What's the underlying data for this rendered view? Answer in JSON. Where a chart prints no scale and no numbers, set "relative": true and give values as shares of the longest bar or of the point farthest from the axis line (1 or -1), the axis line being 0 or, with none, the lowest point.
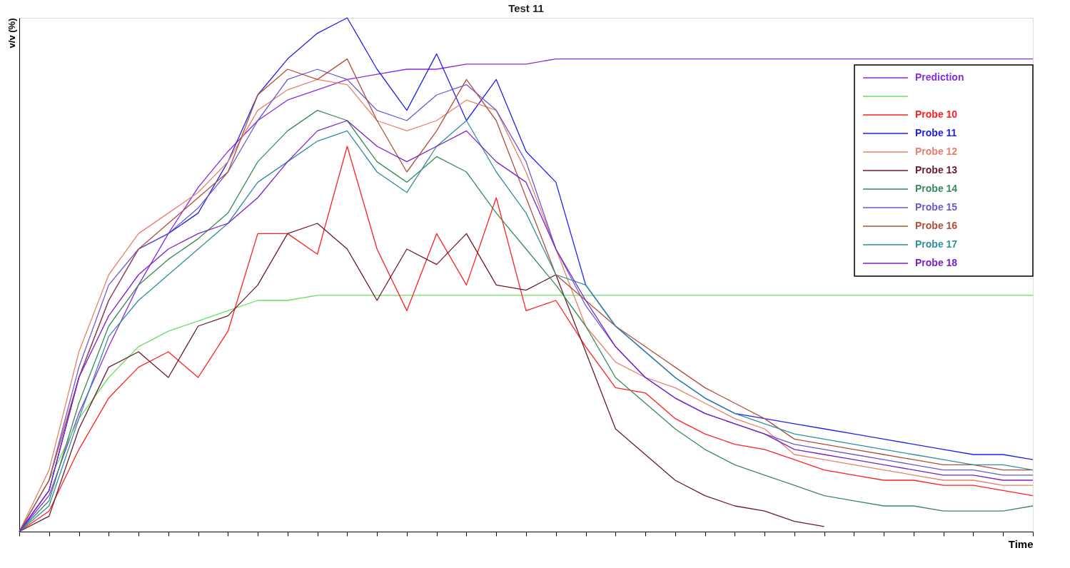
{
  "chart_data": {
    "type": "line",
    "title": "Test 11",
    "xlabel": "Time",
    "ylabel": "v/v (%)",
    "relative": true,
    "legend": "top right",
    "categories": [
      null,
      null,
      null,
      null,
      null,
      null,
      null,
      null,
      null,
      null,
      null,
      null,
      null,
      null,
      null,
      null,
      null,
      null,
      null,
      null,
      null,
      null,
      null,
      null,
      null,
      null,
      null,
      null,
      null,
      null,
      null,
      null,
      null,
      null,
      null
    ],
    "series": [
      {
        "name": "Prediction",
        "color": "#8a2be2",
        "values": [
          0,
          0.07,
          0.23,
          0.36,
          0.48,
          0.58,
          0.67,
          0.74,
          0.8,
          0.84,
          0.86,
          0.88,
          0.89,
          0.9,
          0.9,
          0.91,
          0.91,
          0.91,
          0.92,
          0.92,
          0.92,
          0.92,
          0.92,
          0.92,
          0.92,
          0.92,
          0.92,
          0.92,
          0.92,
          0.92,
          0.92,
          0.92,
          0.92,
          0.92,
          0.92
        ]
      },
      {
        "color": "#66e066",
        "values": [
          0,
          0.1,
          0.22,
          0.3,
          0.36,
          0.39,
          0.41,
          0.43,
          0.45,
          0.45,
          0.46,
          0.46,
          0.46,
          0.46,
          0.46,
          0.46,
          0.46,
          0.46,
          0.46,
          0.46,
          0.46,
          0.46,
          0.46,
          0.46,
          0.46,
          0.46,
          0.46,
          0.46,
          0.46,
          0.46,
          0.46,
          0.46,
          0.46,
          0.46,
          0.46
        ]
      },
      {
        "name": "Probe 10",
        "color": "#ff2020",
        "values": [
          0,
          0.04,
          0.16,
          0.26,
          0.32,
          0.35,
          0.3,
          0.39,
          0.58,
          0.58,
          0.54,
          0.75,
          0.55,
          0.43,
          0.58,
          0.48,
          0.65,
          0.43,
          0.45,
          0.36,
          0.28,
          0.27,
          0.22,
          0.19,
          0.17,
          0.16,
          0.14,
          0.12,
          0.11,
          0.1,
          0.1,
          0.09,
          0.09,
          0.08,
          0.07
        ]
      },
      {
        "name": "Probe 11",
        "color": "#2020ee",
        "values": [
          0,
          0.08,
          0.3,
          0.45,
          0.55,
          0.58,
          0.62,
          0.72,
          0.85,
          0.92,
          0.97,
          1.0,
          0.9,
          0.82,
          0.93,
          0.8,
          0.88,
          0.74,
          0.68,
          0.48,
          0.4,
          0.35,
          0.3,
          0.26,
          0.23,
          0.22,
          0.21,
          0.2,
          0.19,
          0.18,
          0.17,
          0.16,
          0.15,
          0.15,
          0.14
        ]
      },
      {
        "name": "Probe 12",
        "color": "#e8806a",
        "values": [
          0,
          0.12,
          0.35,
          0.5,
          0.58,
          0.62,
          0.66,
          0.72,
          0.82,
          0.86,
          0.88,
          0.87,
          0.8,
          0.78,
          0.8,
          0.84,
          0.82,
          0.7,
          0.55,
          0.4,
          0.33,
          0.3,
          0.28,
          0.25,
          0.22,
          0.2,
          0.15,
          0.14,
          0.13,
          0.12,
          0.11,
          0.1,
          0.1,
          0.09,
          0.09
        ]
      },
      {
        "name": "Probe 13",
        "color": "#6b1a2e",
        "values": [
          0,
          0.03,
          0.2,
          0.32,
          0.35,
          0.3,
          0.4,
          0.42,
          0.48,
          0.58,
          0.6,
          0.55,
          0.45,
          0.55,
          0.52,
          0.58,
          0.48,
          0.47,
          0.5,
          0.35,
          0.2,
          0.15,
          0.1,
          0.07,
          0.05,
          0.04,
          0.02,
          0.01,
          null,
          null,
          null,
          null,
          null,
          null,
          null
        ]
      },
      {
        "name": "Probe 14",
        "color": "#3a8a5a",
        "values": [
          0,
          0.06,
          0.25,
          0.4,
          0.48,
          0.53,
          0.57,
          0.62,
          0.72,
          0.78,
          0.82,
          0.8,
          0.72,
          0.68,
          0.73,
          0.7,
          0.62,
          0.55,
          0.48,
          0.4,
          0.3,
          0.25,
          0.2,
          0.16,
          0.13,
          0.11,
          0.09,
          0.07,
          0.06,
          0.05,
          0.05,
          0.04,
          0.04,
          0.04,
          0.05
        ]
      },
      {
        "name": "Probe 15",
        "color": "#6a5acd",
        "values": [
          0,
          0.1,
          0.32,
          0.48,
          0.55,
          0.58,
          0.63,
          0.7,
          0.8,
          0.88,
          0.9,
          0.88,
          0.82,
          0.8,
          0.85,
          0.87,
          0.82,
          0.72,
          0.55,
          0.44,
          0.36,
          0.3,
          0.26,
          0.23,
          0.21,
          0.19,
          0.17,
          0.16,
          0.15,
          0.14,
          0.13,
          0.12,
          0.12,
          0.11,
          0.11
        ]
      },
      {
        "name": "Probe 16",
        "color": "#b0503a",
        "values": [
          0,
          0.1,
          0.3,
          0.45,
          0.55,
          0.6,
          0.65,
          0.7,
          0.85,
          0.9,
          0.88,
          0.92,
          0.8,
          0.7,
          0.78,
          0.88,
          0.8,
          0.65,
          0.5,
          0.45,
          0.4,
          0.36,
          0.32,
          0.28,
          0.25,
          0.22,
          0.18,
          0.17,
          0.16,
          0.15,
          0.14,
          0.13,
          0.13,
          0.12,
          0.12
        ]
      },
      {
        "name": "Probe 17",
        "color": "#2f8f9f",
        "values": [
          0,
          0.05,
          0.22,
          0.38,
          0.45,
          0.5,
          0.55,
          0.6,
          0.68,
          0.72,
          0.76,
          0.78,
          0.7,
          0.66,
          0.75,
          0.8,
          0.7,
          0.62,
          0.5,
          0.48,
          0.4,
          0.35,
          0.3,
          0.26,
          0.23,
          0.21,
          0.19,
          0.18,
          0.17,
          0.16,
          0.15,
          0.14,
          0.13,
          0.13,
          0.12
        ]
      },
      {
        "name": "Probe 18",
        "color": "#7a22c8",
        "values": [
          0,
          0.08,
          0.3,
          0.42,
          0.5,
          0.55,
          0.58,
          0.6,
          0.65,
          0.72,
          0.78,
          0.8,
          0.75,
          0.72,
          0.75,
          0.78,
          0.72,
          0.68,
          0.55,
          0.45,
          0.36,
          0.3,
          0.26,
          0.23,
          0.21,
          0.19,
          0.16,
          0.15,
          0.14,
          0.13,
          0.12,
          0.11,
          0.11,
          0.1,
          0.1
        ]
      }
    ]
  }
}
